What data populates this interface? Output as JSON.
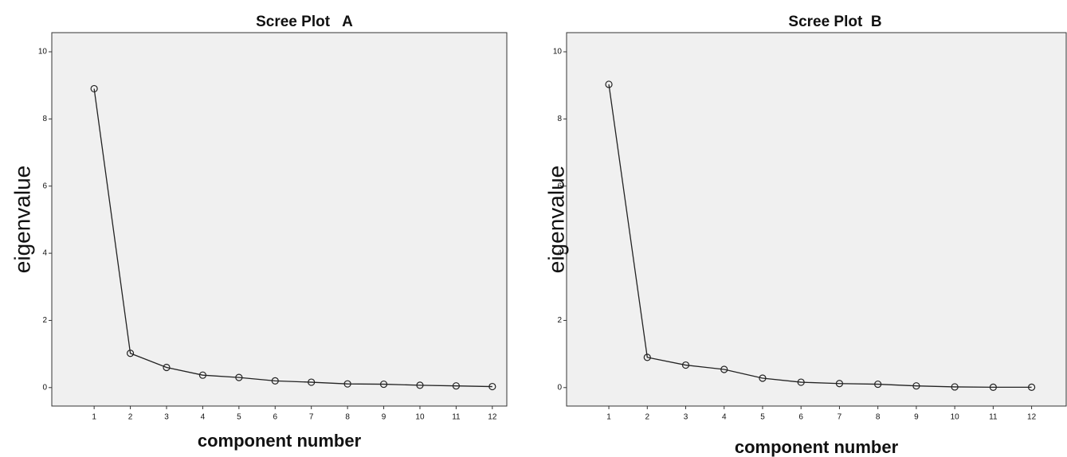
{
  "chart_data": [
    {
      "type": "line",
      "title": "Scree Plot   A",
      "xlabel": "component number",
      "ylabel": "eigenvalue",
      "x": [
        1,
        2,
        3,
        4,
        5,
        6,
        7,
        8,
        9,
        10,
        11,
        12
      ],
      "values": [
        8.9,
        1.02,
        0.6,
        0.37,
        0.3,
        0.2,
        0.16,
        0.11,
        0.1,
        0.07,
        0.05,
        0.03
      ],
      "color": "#222222",
      "xlim": [
        -0.17,
        12.4
      ],
      "ylim": [
        -0.55,
        10.57
      ],
      "xticks": [
        1,
        2,
        3,
        4,
        5,
        6,
        7,
        8,
        9,
        10,
        11,
        12
      ],
      "yticks": [
        0,
        2,
        4,
        6,
        8,
        10
      ]
    },
    {
      "type": "line",
      "title": "Scree Plot  B",
      "xlabel": "component number",
      "ylabel": "eigenvalue",
      "x": [
        1,
        2,
        3,
        4,
        5,
        6,
        7,
        8,
        9,
        10,
        11,
        12
      ],
      "values": [
        9.03,
        0.9,
        0.67,
        0.54,
        0.28,
        0.16,
        0.12,
        0.1,
        0.05,
        0.02,
        0.01,
        0.01
      ],
      "color": "#222222",
      "xlim": [
        -0.1,
        12.9
      ],
      "ylim": [
        -0.55,
        10.57
      ],
      "xticks": [
        1,
        2,
        3,
        4,
        5,
        6,
        7,
        8,
        9,
        10,
        11,
        12
      ],
      "yticks": [
        0,
        2,
        4,
        6,
        8,
        10
      ]
    }
  ]
}
